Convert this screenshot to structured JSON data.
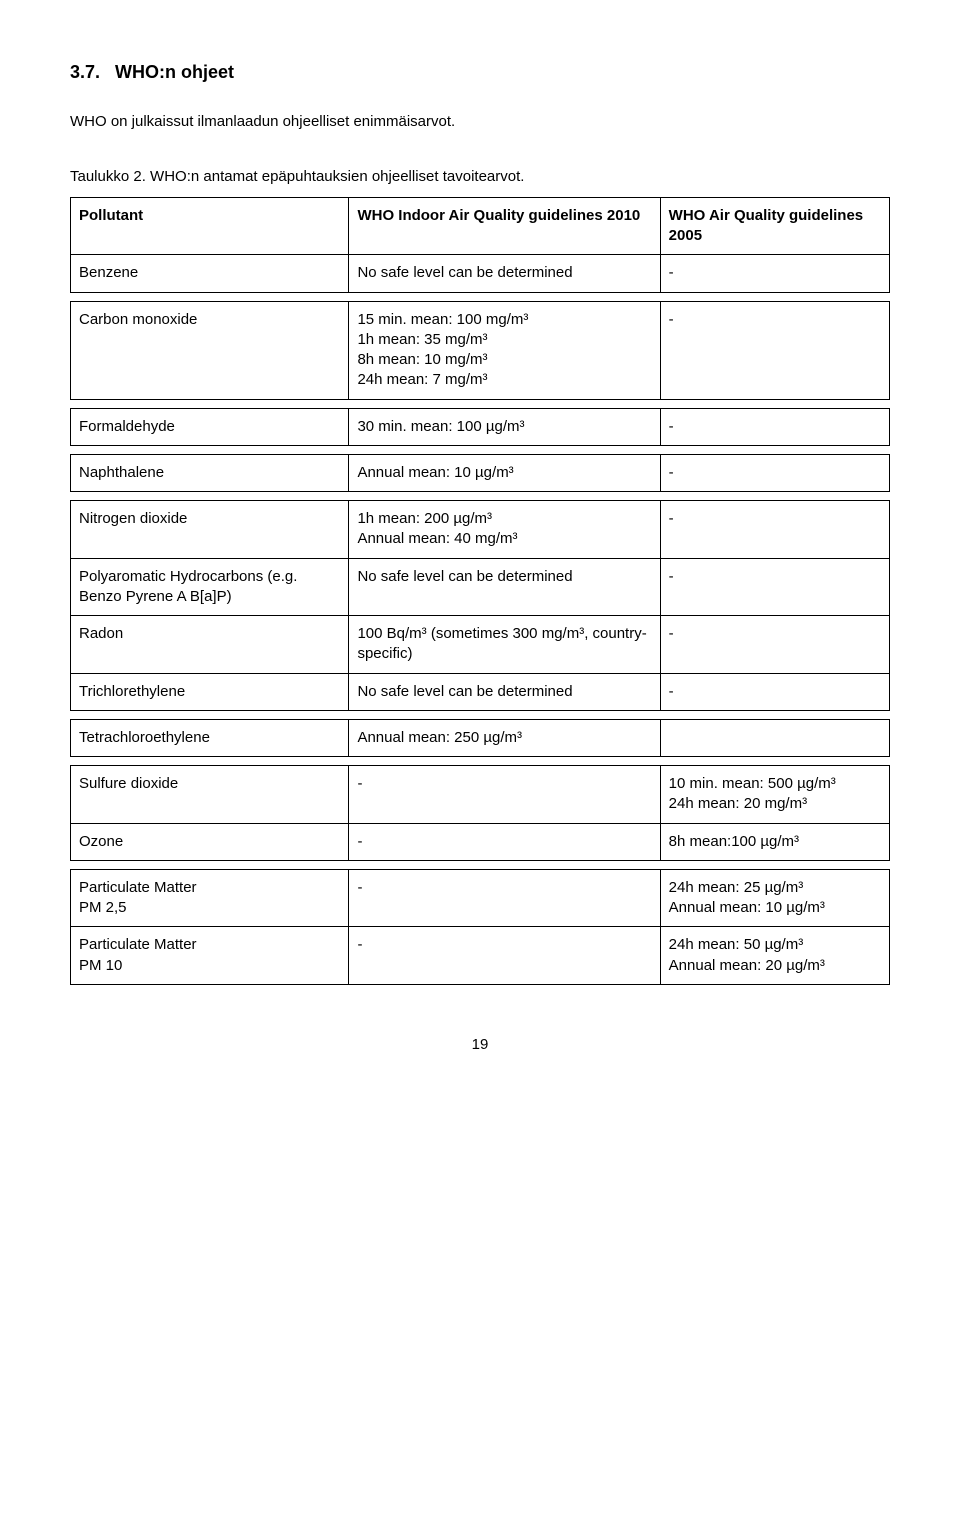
{
  "section": {
    "number": "3.7.",
    "title": "WHO:n ohjeet",
    "intro": "WHO on julkaissut ilmanlaadun ohjeelliset enimmäisarvot.",
    "caption": "Taulukko 2. WHO:n antamat epäpuhtauksien ohjeelliset tavoitearvot."
  },
  "tables": [
    {
      "header": true,
      "rows": [
        {
          "c1": "Pollutant",
          "c2": "WHO Indoor Air Quality guidelines 2010",
          "c3": "WHO Air Quality guidelines 2005"
        },
        {
          "c1": "Benzene",
          "c2": "No safe level can be determined",
          "c3": "-"
        }
      ]
    },
    {
      "rows": [
        {
          "c1": "Carbon monoxide",
          "c2": "15 min. mean: 100 mg/m³\n1h mean: 35 mg/m³\n8h mean: 10 mg/m³\n24h mean: 7 mg/m³",
          "c3": "-"
        }
      ]
    },
    {
      "rows": [
        {
          "c1": "Formaldehyde",
          "c2": "30 min. mean: 100 µg/m³",
          "c3": "-"
        }
      ]
    },
    {
      "rows": [
        {
          "c1": "Naphthalene",
          "c2": "Annual mean: 10 µg/m³",
          "c3": "-"
        }
      ]
    },
    {
      "rows": [
        {
          "c1": "Nitrogen dioxide",
          "c2": "1h mean: 200 µg/m³\nAnnual mean: 40 mg/m³",
          "c3": "-"
        },
        {
          "c1": "Polyaromatic Hydrocarbons (e.g. Benzo Pyrene A B[a]P)",
          "c2": "No safe level can be determined",
          "c3": "-"
        },
        {
          "c1": "Radon",
          "c2": "100 Bq/m³ (sometimes 300 mg/m³, country-specific)",
          "c3": "-"
        },
        {
          "c1": "Trichlorethylene",
          "c2": "No safe level can be determined",
          "c3": "-"
        }
      ]
    },
    {
      "rows": [
        {
          "c1": "Tetrachloroethylene",
          "c2": "Annual mean: 250 µg/m³",
          "c3": ""
        }
      ]
    },
    {
      "rows": [
        {
          "c1": "Sulfure dioxide",
          "c2": "-",
          "c3": "10 min. mean: 500 µg/m³\n24h mean: 20 mg/m³"
        },
        {
          "c1": "Ozone",
          "c2": "-",
          "c3": "8h mean:100 µg/m³"
        }
      ]
    },
    {
      "rows": [
        {
          "c1": "Particulate Matter\nPM 2,5",
          "c2": "-",
          "c3": "24h mean: 25 µg/m³\nAnnual mean: 10 µg/m³"
        },
        {
          "c1": "Particulate Matter\nPM 10",
          "c2": "-",
          "c3": "24h mean: 50 µg/m³\nAnnual mean: 20 µg/m³"
        }
      ]
    }
  ],
  "pageNumber": "19"
}
